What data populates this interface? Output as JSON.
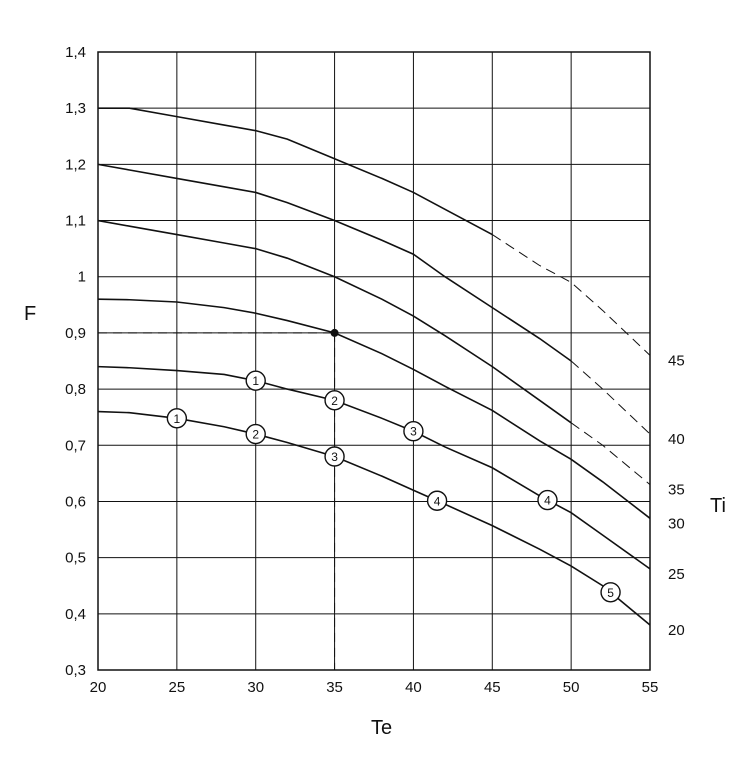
{
  "chart_data": {
    "type": "line",
    "xlabel": "Te",
    "ylabel": "F",
    "legend_title": "Ti",
    "xlim": [
      20,
      55
    ],
    "ylim": [
      0.3,
      1.4
    ],
    "x_ticks": [
      20,
      25,
      30,
      35,
      40,
      45,
      50,
      55
    ],
    "y_ticks": [
      0.3,
      0.4,
      0.5,
      0.6,
      0.7,
      0.8,
      0.9,
      1.0,
      1.1,
      1.2,
      1.3,
      1.4
    ],
    "x_tick_labels": [
      "20",
      "25",
      "30",
      "35",
      "40",
      "45",
      "50",
      "55"
    ],
    "y_tick_labels": [
      "0,3",
      "0,4",
      "0,5",
      "0,6",
      "0,7",
      "0,8",
      "0,9",
      "1",
      "1,1",
      "1,2",
      "1,3",
      "1,4"
    ],
    "grid": true,
    "series": [
      {
        "name": "20",
        "points": [
          [
            20,
            0.76
          ],
          [
            22,
            0.758
          ],
          [
            25,
            0.748
          ],
          [
            28,
            0.733
          ],
          [
            30,
            0.72
          ],
          [
            32,
            0.705
          ],
          [
            35,
            0.68
          ],
          [
            38,
            0.645
          ],
          [
            40,
            0.62
          ],
          [
            42,
            0.595
          ],
          [
            45,
            0.557
          ],
          [
            48,
            0.515
          ],
          [
            50,
            0.485
          ],
          [
            52,
            0.45
          ],
          [
            55,
            0.38
          ]
        ],
        "dashed_from": null
      },
      {
        "name": "25",
        "points": [
          [
            20,
            0.84
          ],
          [
            22,
            0.838
          ],
          [
            25,
            0.833
          ],
          [
            28,
            0.826
          ],
          [
            30,
            0.815
          ],
          [
            32,
            0.8
          ],
          [
            35,
            0.78
          ],
          [
            38,
            0.748
          ],
          [
            40,
            0.725
          ],
          [
            42,
            0.697
          ],
          [
            45,
            0.66
          ],
          [
            48,
            0.61
          ],
          [
            50,
            0.58
          ],
          [
            52,
            0.54
          ],
          [
            55,
            0.48
          ]
        ],
        "dashed_from": null
      },
      {
        "name": "30",
        "points": [
          [
            20,
            0.96
          ],
          [
            22,
            0.959
          ],
          [
            25,
            0.955
          ],
          [
            28,
            0.945
          ],
          [
            30,
            0.935
          ],
          [
            32,
            0.922
          ],
          [
            35,
            0.9
          ],
          [
            38,
            0.863
          ],
          [
            40,
            0.835
          ],
          [
            42,
            0.805
          ],
          [
            45,
            0.762
          ],
          [
            48,
            0.708
          ],
          [
            50,
            0.675
          ],
          [
            52,
            0.635
          ],
          [
            55,
            0.57
          ]
        ],
        "dashed_from": null
      },
      {
        "name": "35",
        "points": [
          [
            20,
            1.1
          ],
          [
            22,
            1.09
          ],
          [
            25,
            1.075
          ],
          [
            28,
            1.06
          ],
          [
            30,
            1.05
          ],
          [
            32,
            1.033
          ],
          [
            35,
            1.0
          ],
          [
            38,
            0.96
          ],
          [
            40,
            0.93
          ],
          [
            42,
            0.895
          ],
          [
            45,
            0.84
          ],
          [
            48,
            0.78
          ],
          [
            50,
            0.74
          ],
          [
            52,
            0.7
          ],
          [
            55,
            0.63
          ]
        ],
        "dashed_from": 50
      },
      {
        "name": "40",
        "points": [
          [
            20,
            1.2
          ],
          [
            22,
            1.19
          ],
          [
            25,
            1.175
          ],
          [
            28,
            1.16
          ],
          [
            30,
            1.15
          ],
          [
            32,
            1.132
          ],
          [
            35,
            1.1
          ],
          [
            38,
            1.065
          ],
          [
            40,
            1.04
          ],
          [
            42,
            1.0
          ],
          [
            45,
            0.945
          ],
          [
            48,
            0.89
          ],
          [
            50,
            0.85
          ],
          [
            52,
            0.8
          ],
          [
            55,
            0.72
          ]
        ],
        "dashed_from": 50
      },
      {
        "name": "45",
        "points": [
          [
            20,
            1.3
          ],
          [
            22,
            1.3
          ],
          [
            25,
            1.285
          ],
          [
            28,
            1.27
          ],
          [
            30,
            1.26
          ],
          [
            32,
            1.245
          ],
          [
            35,
            1.21
          ],
          [
            38,
            1.175
          ],
          [
            40,
            1.15
          ],
          [
            42,
            1.12
          ],
          [
            45,
            1.075
          ],
          [
            48,
            1.02
          ],
          [
            50,
            0.99
          ],
          [
            52,
            0.94
          ],
          [
            55,
            0.86
          ]
        ],
        "dashed_from": 45
      }
    ],
    "markers": [
      {
        "series": "20",
        "x": 25,
        "label": "1"
      },
      {
        "series": "20",
        "x": 30,
        "label": "2"
      },
      {
        "series": "20",
        "x": 35,
        "label": "3"
      },
      {
        "series": "20",
        "x": 41.5,
        "label": "4"
      },
      {
        "series": "20",
        "x": 52.5,
        "label": "5"
      },
      {
        "series": "25",
        "x": 30,
        "label": "1"
      },
      {
        "series": "25",
        "x": 35,
        "label": "2"
      },
      {
        "series": "25",
        "x": 40,
        "label": "3"
      },
      {
        "series": "25",
        "x": 48.5,
        "label": "4"
      }
    ],
    "example_point": {
      "x": 35,
      "y": 0.9
    }
  }
}
